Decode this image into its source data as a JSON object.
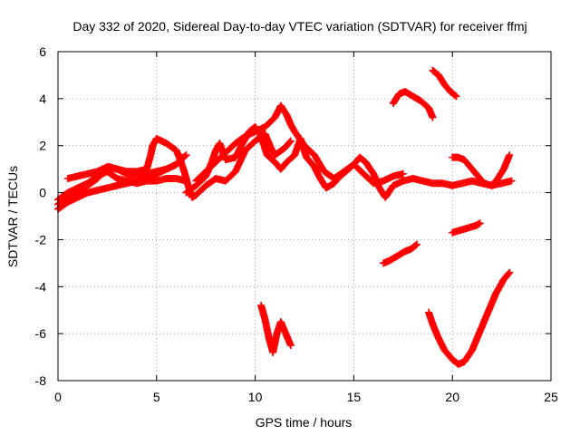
{
  "chart_data": {
    "type": "scatter",
    "title": "Day 332 of 2020, Sidereal Day-to-day VTEC variation (SDTVAR) for receiver ffmj",
    "xlabel": "GPS time / hours",
    "ylabel": "SDTVAR / TECUs",
    "xlim": [
      0,
      25
    ],
    "ylim": [
      -8,
      6
    ],
    "x_ticks": [
      0,
      5,
      10,
      15,
      20,
      25
    ],
    "y_ticks": [
      -8,
      -6,
      -4,
      -2,
      0,
      2,
      4,
      6
    ],
    "x_tick_labels": [
      "0",
      "5",
      "10",
      "15",
      "20",
      "25"
    ],
    "y_tick_labels": [
      "-8",
      "-6",
      "-4",
      "-2",
      "0",
      "2",
      "4",
      "6"
    ],
    "grid": true,
    "marker": "plus",
    "color": "#ff0000",
    "series": [
      {
        "points": [
          [
            0,
            -0.7
          ],
          [
            0.5,
            -0.4
          ],
          [
            1,
            -0.2
          ],
          [
            1.5,
            0.0
          ],
          [
            2,
            0.1
          ],
          [
            2.5,
            0.2
          ],
          [
            3,
            0.3
          ],
          [
            3.5,
            0.4
          ],
          [
            4,
            0.5
          ],
          [
            4.5,
            0.6
          ],
          [
            5,
            0.8
          ],
          [
            5.5,
            1.0
          ],
          [
            6,
            1.2
          ],
          [
            6.3,
            1.5
          ]
        ]
      },
      {
        "points": [
          [
            0,
            -0.5
          ],
          [
            0.5,
            -0.2
          ],
          [
            1,
            0.0
          ],
          [
            1.5,
            0.3
          ],
          [
            2,
            0.6
          ],
          [
            2.3,
            0.9
          ],
          [
            2.6,
            1.1
          ],
          [
            3,
            1.0
          ],
          [
            3.5,
            0.8
          ],
          [
            4,
            0.7
          ],
          [
            4.5,
            0.8
          ],
          [
            5,
            0.9
          ],
          [
            5.5,
            1.0
          ],
          [
            6,
            1.2
          ],
          [
            6.5,
            1.6
          ]
        ]
      },
      {
        "points": [
          [
            0,
            -0.3
          ],
          [
            0.5,
            0.0
          ],
          [
            1,
            0.2
          ],
          [
            1.5,
            0.4
          ],
          [
            2,
            0.7
          ],
          [
            2.5,
            0.9
          ],
          [
            3,
            0.6
          ],
          [
            3.5,
            0.5
          ],
          [
            4,
            0.4
          ],
          [
            4.5,
            0.5
          ],
          [
            5,
            0.5
          ],
          [
            5.5,
            0.6
          ],
          [
            6,
            0.6
          ],
          [
            6.5,
            0.5
          ]
        ]
      },
      {
        "points": [
          [
            0.5,
            0.6
          ],
          [
            1,
            0.7
          ],
          [
            1.5,
            0.8
          ],
          [
            2,
            0.9
          ],
          [
            2.5,
            1.1
          ],
          [
            3,
            1.0
          ],
          [
            3.5,
            0.9
          ],
          [
            4,
            0.9
          ],
          [
            4.5,
            1.0
          ],
          [
            4.7,
            1.6
          ],
          [
            4.8,
            2.0
          ],
          [
            5,
            2.3
          ],
          [
            5.5,
            2.1
          ],
          [
            6,
            1.8
          ],
          [
            6.2,
            1.4
          ],
          [
            6.4,
            0.9
          ],
          [
            6.6,
            0.3
          ],
          [
            6.8,
            -0.2
          ],
          [
            7,
            -0.1
          ],
          [
            7.5,
            0.3
          ],
          [
            8,
            0.6
          ],
          [
            8.5,
            0.5
          ],
          [
            9,
            0.9
          ],
          [
            9.5,
            1.8
          ],
          [
            10,
            2.2
          ],
          [
            10.5,
            2.5
          ],
          [
            10.8,
            1.9
          ],
          [
            11,
            1.6
          ],
          [
            11.5,
            1.9
          ],
          [
            11.8,
            2.2
          ]
        ]
      },
      {
        "points": [
          [
            6.5,
            0.0
          ],
          [
            7,
            0.3
          ],
          [
            7.5,
            0.7
          ],
          [
            7.8,
            1.3
          ],
          [
            8,
            1.8
          ],
          [
            8.2,
            2.1
          ],
          [
            8.5,
            1.4
          ],
          [
            9,
            1.5
          ],
          [
            9.3,
            2.0
          ],
          [
            9.7,
            2.6
          ],
          [
            10,
            2.8
          ],
          [
            10.3,
            2.4
          ],
          [
            10.6,
            1.6
          ],
          [
            11,
            1.3
          ],
          [
            11.3,
            1.0
          ],
          [
            11.6,
            1.3
          ],
          [
            12,
            1.6
          ],
          [
            12.3,
            2.3
          ],
          [
            12.6,
            1.5
          ],
          [
            13,
            1.1
          ],
          [
            13.3,
            0.6
          ],
          [
            13.6,
            0.2
          ],
          [
            14,
            0.4
          ],
          [
            14.3,
            0.7
          ],
          [
            14.6,
            0.9
          ],
          [
            15,
            1.2
          ],
          [
            15.3,
            1.5
          ],
          [
            15.6,
            1.3
          ],
          [
            16,
            0.8
          ],
          [
            16.3,
            0.2
          ],
          [
            16.6,
            -0.2
          ],
          [
            17,
            0.3
          ],
          [
            17.5,
            0.5
          ],
          [
            18,
            0.6
          ],
          [
            18.5,
            0.5
          ],
          [
            19,
            0.4
          ],
          [
            19.5,
            0.4
          ],
          [
            20,
            0.3
          ],
          [
            20.5,
            0.4
          ],
          [
            21,
            0.5
          ],
          [
            21.5,
            0.4
          ],
          [
            22,
            0.3
          ],
          [
            22.5,
            0.4
          ],
          [
            23,
            0.5
          ]
        ]
      },
      {
        "points": [
          [
            7,
            0.5
          ],
          [
            7.5,
            0.9
          ],
          [
            8,
            1.3
          ],
          [
            8.5,
            1.7
          ],
          [
            9,
            2.1
          ],
          [
            9.5,
            2.4
          ],
          [
            10,
            2.6
          ],
          [
            10.5,
            2.8
          ],
          [
            11,
            3.2
          ],
          [
            11.3,
            3.7
          ],
          [
            11.6,
            3.3
          ],
          [
            11.8,
            2.9
          ],
          [
            12,
            2.6
          ],
          [
            12.5,
            2.0
          ],
          [
            13,
            1.6
          ],
          [
            13.5,
            0.9
          ],
          [
            14,
            0.6
          ],
          [
            14.5,
            0.9
          ],
          [
            15,
            1.2
          ],
          [
            15.5,
            0.8
          ],
          [
            16,
            0.4
          ],
          [
            16.5,
            0.5
          ],
          [
            17,
            0.7
          ],
          [
            17.5,
            0.8
          ]
        ]
      },
      {
        "points": [
          [
            17,
            3.8
          ],
          [
            17.3,
            4.2
          ],
          [
            17.6,
            4.3
          ],
          [
            18,
            4.1
          ],
          [
            18.4,
            3.9
          ],
          [
            18.8,
            3.6
          ],
          [
            19,
            3.2
          ]
        ]
      },
      {
        "points": [
          [
            19,
            5.2
          ],
          [
            19.3,
            5.0
          ],
          [
            19.6,
            4.6
          ],
          [
            19.9,
            4.3
          ],
          [
            20.2,
            4.1
          ]
        ]
      },
      {
        "points": [
          [
            20,
            1.5
          ],
          [
            20.3,
            1.5
          ],
          [
            20.6,
            1.4
          ],
          [
            21,
            1.0
          ],
          [
            21.3,
            0.7
          ],
          [
            21.6,
            0.4
          ],
          [
            22,
            0.3
          ],
          [
            22.3,
            0.6
          ],
          [
            22.6,
            1.0
          ],
          [
            22.9,
            1.6
          ]
        ]
      },
      {
        "points": [
          [
            10.3,
            -4.8
          ],
          [
            10.5,
            -5.4
          ],
          [
            10.7,
            -6.2
          ],
          [
            10.9,
            -6.8
          ],
          [
            11.1,
            -6.0
          ],
          [
            11.3,
            -5.5
          ],
          [
            11.6,
            -6.1
          ],
          [
            11.8,
            -6.5
          ]
        ]
      },
      {
        "points": [
          [
            16.5,
            -3.0
          ],
          [
            16.8,
            -2.9
          ],
          [
            17.2,
            -2.7
          ],
          [
            17.6,
            -2.5
          ],
          [
            17.9,
            -2.4
          ],
          [
            18.2,
            -2.2
          ]
        ]
      },
      {
        "points": [
          [
            20,
            -1.7
          ],
          [
            20.4,
            -1.6
          ],
          [
            20.8,
            -1.5
          ],
          [
            21.2,
            -1.4
          ],
          [
            21.4,
            -1.3
          ]
        ]
      },
      {
        "points": [
          [
            18.8,
            -5.1
          ],
          [
            19,
            -5.6
          ],
          [
            19.3,
            -6.2
          ],
          [
            19.6,
            -6.7
          ],
          [
            20,
            -7.1
          ],
          [
            20.3,
            -7.3
          ],
          [
            20.6,
            -7.2
          ],
          [
            21,
            -6.7
          ],
          [
            21.4,
            -5.9
          ],
          [
            21.8,
            -5.1
          ],
          [
            22.2,
            -4.3
          ],
          [
            22.6,
            -3.7
          ],
          [
            22.9,
            -3.4
          ]
        ]
      }
    ]
  }
}
